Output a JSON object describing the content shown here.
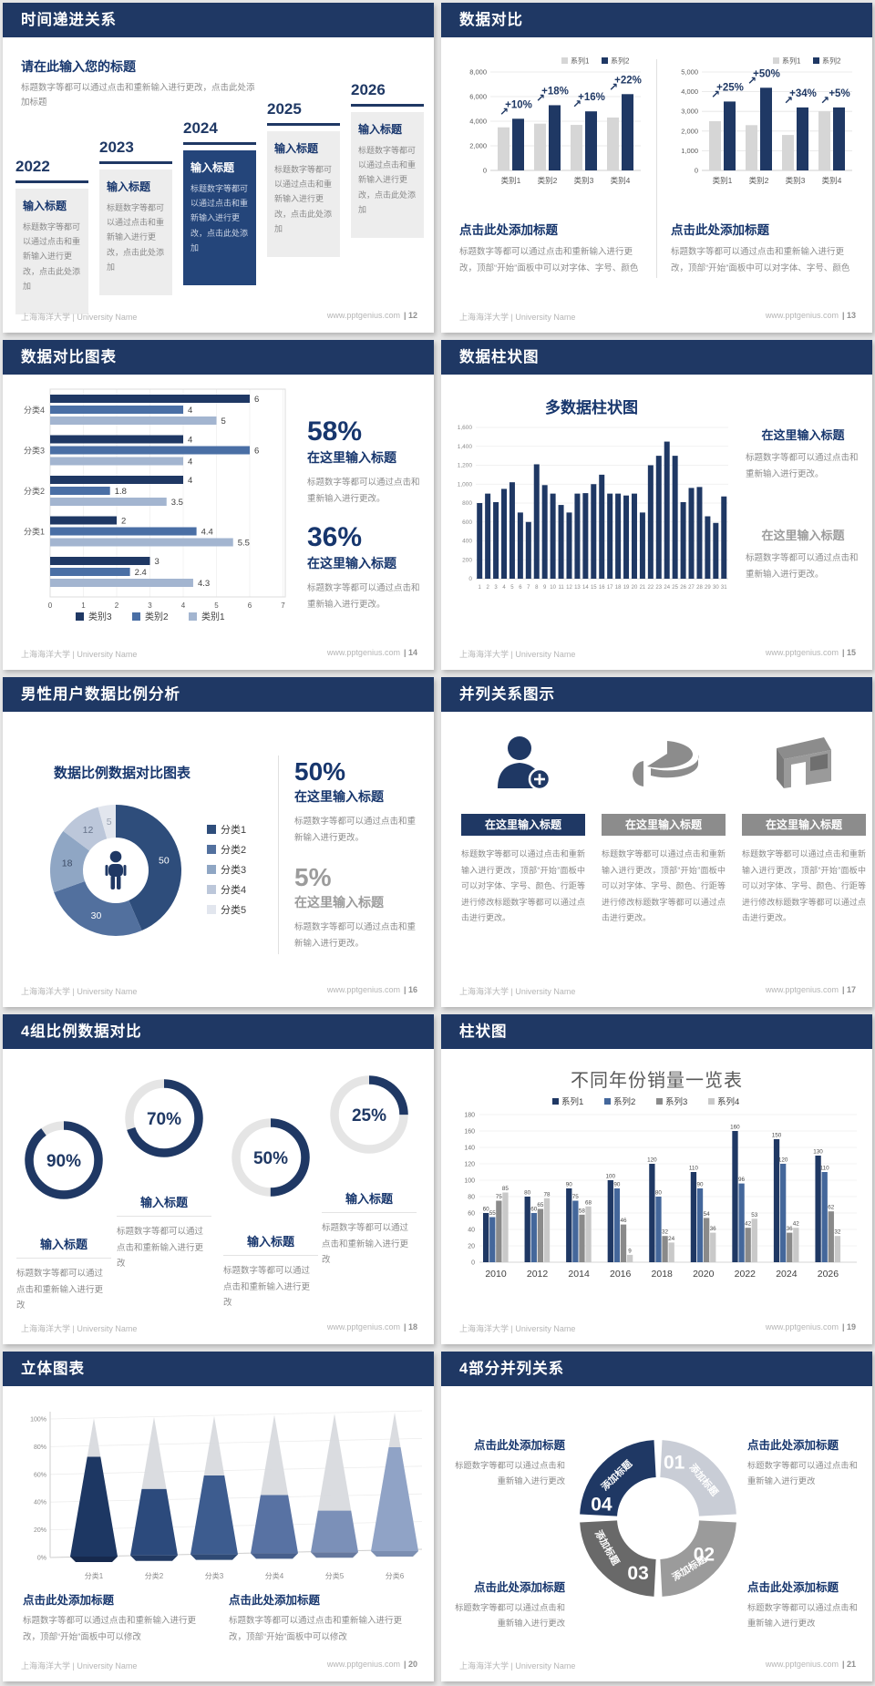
{
  "footer": {
    "left": "上海海洋大学 | University Name",
    "site": "www.pptgenius.com"
  },
  "colors": {
    "navy": "#1f3864",
    "heading_blue": "#17366d",
    "body_gray": "#8c8c8c",
    "bar_gray": "#d6d6d6",
    "bg": "#e7e7e7"
  },
  "slides": {
    "s1": {
      "header": "时间递进关系",
      "page": "| 12",
      "intro_title": "请在此输入您的标题",
      "intro_body": "标题数字等都可以通过点击和重新输入进行更改，点击此处添加标题",
      "years": [
        "2022",
        "2023",
        "2024",
        "2025",
        "2026"
      ],
      "card_title": "输入标题",
      "card_body": "标题数字等都可以通过点击和重新输入进行更改，点击此处添加"
    },
    "s2": {
      "header": "数据对比",
      "page": "| 13",
      "block_title": "点击此处添加标题",
      "block_body": "标题数字等都可以通过点击和重新输入进行更改，顶部“开始”面板中可以对字体、字号、颜色"
    },
    "s3": {
      "header": "数据对比图表",
      "page": "| 14",
      "stat1": {
        "pct": "58%",
        "title": "在这里输入标题",
        "body": "标题数字等都可以通过点击和重新输入进行更改。"
      },
      "stat2": {
        "pct": "36%",
        "title": "在这里输入标题",
        "body": "标题数字等都可以通过点击和重新输入进行更改。"
      }
    },
    "s4": {
      "header": "数据柱状图",
      "page": "| 15",
      "block1": {
        "title": "在这里输入标题",
        "body": "标题数字等都可以通过点击和重新输入进行更改。"
      },
      "block2": {
        "title": "在这里输入标题",
        "body": "标题数字等都可以通过点击和重新输入进行更改。"
      }
    },
    "s5": {
      "header": "男性用户数据比例分析",
      "page": "| 16",
      "stat1": {
        "pct": "50%",
        "title": "在这里输入标题",
        "body": "标题数字等都可以通过点击和重新输入进行更改。"
      },
      "stat2": {
        "pct": "5%",
        "title": "在这里输入标题",
        "body": "标题数字等都可以通过点击和重新输入进行更改。"
      }
    },
    "s6": {
      "header": "并列关系图示",
      "page": "| 17",
      "col_title": "在这里输入标题",
      "col_body": "标题数字等都可以通过点击和重新输入进行更改，顶部“开始”面板中可以对字体、字号、颜色、行距等进行修改标题数字等都可以通过点击进行更改。"
    },
    "s7": {
      "header": "4组比例数据对比",
      "page": "| 18",
      "item_title": "输入标题",
      "item_body": "标题数字等都可以通过点击和重新输入进行更改"
    },
    "s8": {
      "header": "柱状图",
      "page": "| 19"
    },
    "s9": {
      "header": "立体图表",
      "page": "| 20",
      "block_title": "点击此处添加标题",
      "block_body": "标题数字等都可以通过点击和重新输入进行更改，顶部“开始”面板中可以修改"
    },
    "s10": {
      "header": "4部分并列关系",
      "page": "| 21",
      "block_title": "点击此处添加标题",
      "block_body": "标题数字等都可以通过点击和重新输入进行更改"
    }
  },
  "chart_data": [
    {
      "id": "cmpL",
      "type": "bar",
      "categories": [
        "类别1",
        "类别2",
        "类别3",
        "类别4"
      ],
      "series": [
        {
          "name": "系列1",
          "color": "#d6d6d6",
          "values": [
            3500,
            3800,
            3700,
            4300
          ]
        },
        {
          "name": "系列2",
          "color": "#1f3864",
          "values": [
            4200,
            5300,
            4800,
            6200
          ]
        }
      ],
      "pct_labels": [
        "+10%",
        "+18%",
        "+16%",
        "+22%"
      ],
      "ylim": [
        0,
        8000
      ],
      "ystep": 2000,
      "legend_pos": "top-right",
      "grid": true
    },
    {
      "id": "cmpR",
      "type": "bar",
      "categories": [
        "类别1",
        "类别2",
        "类别3",
        "类别4"
      ],
      "series": [
        {
          "name": "系列1",
          "color": "#d6d6d6",
          "values": [
            2500,
            2300,
            1800,
            3000
          ]
        },
        {
          "name": "系列2",
          "color": "#1f3864",
          "values": [
            3500,
            4200,
            3200,
            3200
          ]
        }
      ],
      "pct_labels": [
        "+25%",
        "+50%",
        "+34%",
        "+5%"
      ],
      "ylim": [
        0,
        5000
      ],
      "ystep": 1000,
      "legend_pos": "top-right",
      "grid": true
    },
    {
      "id": "hbar",
      "type": "bar",
      "orientation": "horizontal",
      "group_labels": [
        "分类4",
        "分类3",
        "分类2",
        "分类1",
        ""
      ],
      "series": [
        {
          "name": "类别3",
          "color": "#1f3864"
        },
        {
          "name": "类别2",
          "color": "#4a6fa5"
        },
        {
          "name": "类别1",
          "color": "#a3b5d0"
        }
      ],
      "values": [
        [
          6,
          4,
          5
        ],
        [
          4,
          6,
          4
        ],
        [
          4,
          1.8,
          3.5
        ],
        [
          2,
          4.4,
          5.5
        ],
        [
          3,
          2.4,
          4.3
        ]
      ],
      "xlim": [
        0,
        7
      ],
      "xticks": [
        0,
        1,
        2,
        3,
        4,
        5,
        6,
        7
      ],
      "legend_pos": "bottom",
      "grid": true
    },
    {
      "id": "daily",
      "type": "bar",
      "title": "多数据柱状图",
      "color": "#1f3864",
      "categories": [
        1,
        2,
        3,
        4,
        5,
        6,
        7,
        8,
        9,
        10,
        11,
        12,
        13,
        14,
        15,
        16,
        17,
        18,
        19,
        20,
        21,
        22,
        23,
        24,
        25,
        26,
        27,
        28,
        29,
        30,
        31
      ],
      "values": [
        800,
        900,
        810,
        950,
        1020,
        700,
        600,
        1210,
        990,
        900,
        780,
        700,
        900,
        905,
        1000,
        1100,
        900,
        900,
        880,
        900,
        700,
        1200,
        1300,
        1450,
        1300,
        810,
        960,
        970,
        660,
        590,
        870
      ],
      "ylim": [
        0,
        1600
      ],
      "ystep": 200,
      "grid": true
    },
    {
      "id": "donut",
      "type": "pie",
      "title": "数据比例数据对比图表",
      "labels": [
        "分类1",
        "分类2",
        "分类3",
        "分类4",
        "分类5"
      ],
      "values": [
        50,
        30,
        18,
        12,
        5
      ],
      "colors": [
        "#2e4d7b",
        "#52709e",
        "#8fa6c4",
        "#bcc7da",
        "#e2e6ee"
      ],
      "legend_pos": "right",
      "center_icon": "male-person"
    },
    {
      "id": "rings",
      "type": "pie",
      "subtype": "progress-rings",
      "rings": [
        {
          "label": "90%",
          "pct": 90
        },
        {
          "label": "70%",
          "pct": 70
        },
        {
          "label": "50%",
          "pct": 50
        },
        {
          "label": "25%",
          "pct": 25
        }
      ],
      "color": "#1f3864",
      "track": "#e5e5e5"
    },
    {
      "id": "years",
      "type": "bar",
      "title": "不同年份销量一览表",
      "categories": [
        2010,
        2012,
        2014,
        2016,
        2018,
        2020,
        2022,
        2024,
        2026
      ],
      "series": [
        {
          "name": "系列1",
          "color": "#1f3864",
          "values": [
            60,
            80,
            90,
            100,
            120,
            110,
            160,
            150,
            130
          ]
        },
        {
          "name": "系列2",
          "color": "#44679b",
          "values": [
            55,
            60,
            75,
            90,
            80,
            90,
            96,
            120,
            110
          ]
        },
        {
          "name": "系列3",
          "color": "#8a8a8a",
          "values": [
            75,
            65,
            58,
            46,
            32,
            54,
            42,
            36,
            62
          ]
        },
        {
          "name": "系列4",
          "color": "#c9c9c9",
          "values": [
            85,
            78,
            68,
            9,
            24,
            36,
            53,
            42,
            32
          ]
        }
      ],
      "ylim": [
        0,
        180
      ],
      "ystep": 20,
      "legend_pos": "top",
      "data_labels": true,
      "grid": true
    },
    {
      "id": "cones",
      "type": "bar",
      "subtype": "cone-3d",
      "categories": [
        "分类1",
        "分类2",
        "分类3",
        "分类4",
        "分类5",
        "分类6"
      ],
      "values": [
        72,
        48,
        57,
        42,
        30,
        75
      ],
      "colors": [
        "#1d3763",
        "#2c4a7c",
        "#3d5c8f",
        "#5872a3",
        "#7b90b8",
        "#90a3c6"
      ],
      "shade_colors": [
        "#16294d",
        "#223a63",
        "#2f4a75",
        "#475f8c",
        "#66799f",
        "#7c8fb2"
      ],
      "cone_gray": "#d7d9dd",
      "yticks": [
        "0%",
        "20%",
        "40%",
        "60%",
        "80%",
        "100%"
      ],
      "ylim": [
        0,
        100
      ]
    },
    {
      "id": "quad",
      "type": "pie",
      "subtype": "ring-4-segments",
      "labels": [
        "01",
        "02",
        "03",
        "04"
      ],
      "seg_label": "添加标题",
      "colors": [
        "#c9cdd6",
        "#9b9b9b",
        "#696969",
        "#1f3864"
      ]
    }
  ]
}
